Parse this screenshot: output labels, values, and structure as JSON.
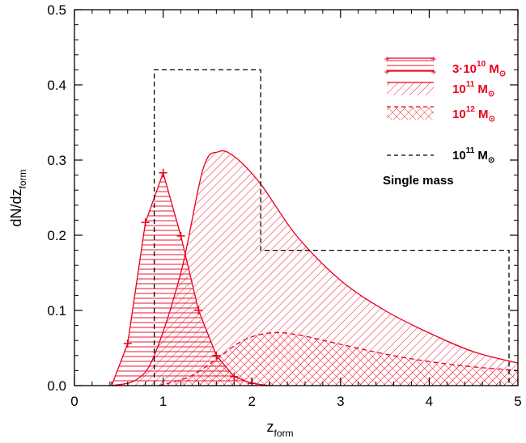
{
  "chart_data": {
    "type": "area",
    "title": "",
    "xlabel": {
      "main": "z",
      "sub": "form"
    },
    "ylabel": {
      "main": "dN/dz",
      "sub": "form"
    },
    "xlim": [
      0,
      5
    ],
    "ylim": [
      0,
      0.5
    ],
    "xticks": [
      "0",
      "1",
      "2",
      "3",
      "4",
      "5"
    ],
    "yticks": [
      "0.0",
      "0.1",
      "0.2",
      "0.3",
      "0.4",
      "0.5"
    ],
    "grid": false,
    "legend_position": "top-right",
    "colors": {
      "model": "#e8001c",
      "single": "#000000"
    },
    "series": [
      {
        "name": "3·10^10 M☉",
        "legend": {
          "base": "3·10",
          "sup": "10",
          "unit": " M",
          "sun": "⊙"
        },
        "hatch": "horizontal",
        "marker": "plus",
        "points": [
          [
            0.42,
            0.0
          ],
          [
            0.6,
            0.056
          ],
          [
            0.8,
            0.217
          ],
          [
            1.0,
            0.283
          ],
          [
            1.2,
            0.199
          ],
          [
            1.4,
            0.1
          ],
          [
            1.6,
            0.04
          ],
          [
            1.8,
            0.012
          ],
          [
            2.0,
            0.003
          ],
          [
            2.2,
            0.0
          ]
        ]
      },
      {
        "name": "10^11 M☉",
        "legend": {
          "base": "10",
          "sup": "11",
          "unit": " M",
          "sun": "⊙"
        },
        "hatch": "diagonal",
        "points": [
          [
            0.42,
            0.0
          ],
          [
            0.7,
            0.008
          ],
          [
            0.9,
            0.04
          ],
          [
            1.2,
            0.15
          ],
          [
            1.45,
            0.288
          ],
          [
            1.62,
            0.311
          ],
          [
            1.8,
            0.305
          ],
          [
            2.1,
            0.268
          ],
          [
            2.5,
            0.2
          ],
          [
            3.0,
            0.14
          ],
          [
            3.5,
            0.1
          ],
          [
            4.0,
            0.07
          ],
          [
            4.5,
            0.045
          ],
          [
            5.0,
            0.03
          ]
        ]
      },
      {
        "name": "10^12 M☉",
        "legend": {
          "base": "10",
          "sup": "12",
          "unit": " M",
          "sun": "⊙"
        },
        "hatch": "crosshatch",
        "line": "dashed",
        "points": [
          [
            0.95,
            0.0
          ],
          [
            1.3,
            0.012
          ],
          [
            1.6,
            0.035
          ],
          [
            1.9,
            0.06
          ],
          [
            2.2,
            0.07
          ],
          [
            2.5,
            0.068
          ],
          [
            3.0,
            0.055
          ],
          [
            3.5,
            0.042
          ],
          [
            4.0,
            0.032
          ],
          [
            4.5,
            0.025
          ],
          [
            5.0,
            0.02
          ]
        ]
      },
      {
        "name": "10^11 M☉ Single mass",
        "legend": {
          "base": "10",
          "sup": "11",
          "unit": " M",
          "sun": "⊙",
          "note": "Single mass"
        },
        "line": "dashed",
        "steps": [
          [
            0.9,
            0.0
          ],
          [
            0.9,
            0.42
          ],
          [
            2.1,
            0.42
          ],
          [
            2.1,
            0.18
          ],
          [
            4.9,
            0.18
          ],
          [
            4.9,
            0.0
          ]
        ]
      }
    ]
  }
}
